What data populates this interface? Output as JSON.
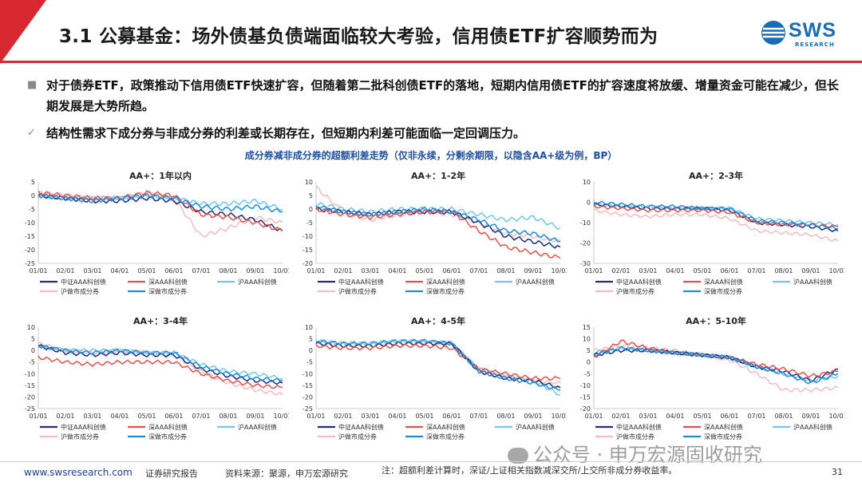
{
  "header": {
    "title": "3.1 公募基金：场外债基负债端面临较大考验，信用债ETF扩容顺势而为",
    "logo_text": "SWS",
    "logo_sub": "RESEARCH"
  },
  "bullets": [
    {
      "marker_icon": "square-bullet-icon",
      "text": "对于债券ETF，政策推动下信用债ETF快速扩容，但随着第二批科创债ETF的落地，短期内信用债ETF的扩容速度将放缓、增量资金可能在减少，但长期发展是大势所趋。"
    },
    {
      "marker_icon": "checkmark-icon",
      "text": "结构性需求下成分券与非成分券的利差或长期存在，但短期内利差可能面临一定回调压力。"
    }
  ],
  "figure_title": "成分券减非成分券的超额利差走势（仅非永续，分剩余期限，以隐含AA+级为例，BP）",
  "legend": [
    {
      "name": "中证AAA科创债",
      "color": "#1f2d7a",
      "width": 2.2
    },
    {
      "name": "深AAA科创债",
      "color": "#e5504a",
      "width": 2.2
    },
    {
      "name": "沪AAA科创债",
      "color": "#74c6ee",
      "width": 2.2
    },
    {
      "name": "沪做市成分券",
      "color": "#f5bcc0",
      "width": 2.2
    },
    {
      "name": "深做市成分券",
      "color": "#1b8ed9",
      "width": 2.2
    }
  ],
  "colors": {
    "brand_red": "#d7282f",
    "brand_blue": "#1c6bb5",
    "figure_title": "#1f4e9b"
  },
  "chart_data": [
    {
      "type": "line",
      "title": "AA+：1年以内",
      "ylim": [
        -25,
        5
      ],
      "yticks": [
        5,
        0,
        -5,
        -10,
        -15,
        -20,
        -25
      ],
      "categories": [
        "01/01",
        "02/01",
        "03/01",
        "04/01",
        "05/01",
        "06/01",
        "07/01",
        "08/01",
        "09/01",
        "10/01"
      ],
      "series": [
        {
          "name": "中证AAA科创债",
          "values": [
            0,
            -1,
            -2,
            -2,
            -1,
            -2,
            -6,
            -7,
            -9,
            -13
          ]
        },
        {
          "name": "深AAA科创债",
          "values": [
            1,
            0,
            -1,
            -1,
            1,
            0,
            -7,
            -8,
            -10,
            -13
          ]
        },
        {
          "name": "沪AAA科创债",
          "values": [
            0,
            -1,
            -1,
            -1,
            0,
            -1,
            -3,
            -3,
            -2,
            -5
          ]
        },
        {
          "name": "沪做市成分券",
          "values": [
            1,
            0,
            -1,
            -1,
            1,
            -1,
            -15,
            -12,
            -8,
            -10
          ]
        },
        {
          "name": "深做市成分券",
          "values": [
            0,
            -1,
            -2,
            -1,
            0,
            -1,
            -4,
            -5,
            -4,
            -6
          ]
        }
      ]
    },
    {
      "type": "line",
      "title": "AA+：1-2年",
      "ylim": [
        -20,
        10
      ],
      "yticks": [
        10,
        5,
        0,
        -5,
        -10,
        -15,
        -20
      ],
      "categories": [
        "01/01",
        "02/01",
        "03/01",
        "04/01",
        "05/01",
        "06/01",
        "07/01",
        "08/01",
        "09/01",
        "10/01"
      ],
      "series": [
        {
          "name": "中证AAA科创债",
          "values": [
            0,
            -1,
            -2,
            -1,
            -1,
            -1,
            -5,
            -10,
            -12,
            -14
          ]
        },
        {
          "name": "深AAA科创债",
          "values": [
            0,
            -2,
            -3,
            -2,
            -1,
            -1,
            -8,
            -14,
            -16,
            -18
          ]
        },
        {
          "name": "沪AAA科创债",
          "values": [
            2,
            0,
            -1,
            0,
            0,
            0,
            -2,
            -4,
            -3,
            -7
          ]
        },
        {
          "name": "沪做市成分券",
          "values": [
            8,
            -1,
            -4,
            -2,
            -1,
            -2,
            -5,
            -9,
            -10,
            -12
          ]
        },
        {
          "name": "深做市成分券",
          "values": [
            1,
            -1,
            -2,
            -1,
            0,
            -1,
            -4,
            -8,
            -9,
            -12
          ]
        }
      ]
    },
    {
      "type": "line",
      "title": "AA+：2-3年",
      "ylim": [
        -30,
        10
      ],
      "yticks": [
        10,
        0,
        -10,
        -20,
        -30
      ],
      "categories": [
        "01/01",
        "02/01",
        "03/01",
        "04/01",
        "05/01",
        "06/01",
        "07/01",
        "08/01",
        "09/01",
        "10/01"
      ],
      "series": [
        {
          "name": "中证AAA科创债",
          "values": [
            -1,
            -2,
            -3,
            -3,
            -3,
            -4,
            -10,
            -11,
            -12,
            -14
          ]
        },
        {
          "name": "深AAA科创债",
          "values": [
            -2,
            -3,
            -4,
            -4,
            -4,
            -5,
            -10,
            -11,
            -11,
            -12
          ]
        },
        {
          "name": "沪AAA科创债",
          "values": [
            -1,
            -2,
            -2,
            -3,
            -3,
            -3,
            -8,
            -9,
            -10,
            -11
          ]
        },
        {
          "name": "沪做市成分券",
          "values": [
            -4,
            -6,
            -7,
            -6,
            -6,
            -8,
            -14,
            -15,
            -16,
            -19
          ]
        },
        {
          "name": "深做市成分券",
          "values": [
            0,
            -1,
            -2,
            -2,
            -3,
            -3,
            -9,
            -10,
            -11,
            -13
          ]
        }
      ]
    },
    {
      "type": "line",
      "title": "AA+：3-4年",
      "ylim": [
        -25,
        10
      ],
      "yticks": [
        10,
        5,
        0,
        -5,
        -10,
        -15,
        -20,
        -25
      ],
      "categories": [
        "01/01",
        "02/01",
        "03/01",
        "04/01",
        "05/01",
        "06/01",
        "07/01",
        "08/01",
        "09/01",
        "10/01"
      ],
      "series": [
        {
          "name": "中证AAA科创债",
          "values": [
            2,
            -1,
            -2,
            -1,
            -2,
            -2,
            -8,
            -11,
            -13,
            -14
          ]
        },
        {
          "name": "深AAA科创债",
          "values": [
            -3,
            -5,
            -6,
            -5,
            -5,
            -5,
            -10,
            -13,
            -15,
            -16
          ]
        },
        {
          "name": "沪AAA科创债",
          "values": [
            2,
            0,
            0,
            0,
            -1,
            -1,
            -6,
            -9,
            -10,
            -12
          ]
        },
        {
          "name": "沪做市成分券",
          "values": [
            3,
            0,
            -1,
            0,
            -1,
            -2,
            -9,
            -14,
            -17,
            -19
          ]
        },
        {
          "name": "深做市成分券",
          "values": [
            2,
            0,
            -1,
            0,
            -1,
            -1,
            -7,
            -10,
            -12,
            -13
          ]
        }
      ]
    },
    {
      "type": "line",
      "title": "AA+：4-5年",
      "ylim": [
        -25,
        10
      ],
      "yticks": [
        10,
        5,
        0,
        -5,
        -10,
        -15,
        -20,
        -25
      ],
      "categories": [
        "01/01",
        "02/01",
        "03/01",
        "04/01",
        "05/01",
        "06/01",
        "07/01",
        "08/01",
        "09/01",
        "10/01"
      ],
      "series": [
        {
          "name": "中证AAA科创债",
          "values": [
            3,
            2,
            2,
            3,
            3,
            3,
            -9,
            -12,
            -13,
            -16
          ]
        },
        {
          "name": "深AAA科创债",
          "values": [
            2,
            1,
            1,
            2,
            2,
            1,
            -8,
            -10,
            -12,
            -12
          ]
        },
        {
          "name": "沪AAA科创债",
          "values": [
            4,
            3,
            3,
            4,
            4,
            3,
            -8,
            -11,
            -13,
            -19
          ]
        },
        {
          "name": "沪做市成分券",
          "values": [
            3,
            2,
            2,
            3,
            3,
            3,
            -8,
            -11,
            -13,
            -14
          ]
        },
        {
          "name": "深做市成分券",
          "values": [
            4,
            3,
            3,
            4,
            4,
            3,
            -9,
            -12,
            -14,
            -17
          ]
        }
      ]
    },
    {
      "type": "line",
      "title": "AA+：5-10年",
      "ylim": [
        -20,
        15
      ],
      "yticks": [
        15,
        10,
        5,
        0,
        -5,
        -10,
        -15,
        -20
      ],
      "categories": [
        "01/01",
        "02/01",
        "03/01",
        "04/01",
        "05/01",
        "06/01",
        "07/01",
        "08/01",
        "09/01",
        "10/01"
      ],
      "series": [
        {
          "name": "中证AAA科创债",
          "values": [
            3,
            5,
            5,
            4,
            3,
            2,
            -2,
            -4,
            -8,
            -3
          ]
        },
        {
          "name": "深AAA科创债",
          "values": [
            2,
            9,
            6,
            4,
            3,
            2,
            -1,
            -3,
            -6,
            -4
          ]
        },
        {
          "name": "沪AAA科创债",
          "values": [
            4,
            6,
            5,
            4,
            3,
            2,
            -2,
            -5,
            -8,
            -6
          ]
        },
        {
          "name": "沪做市成分券",
          "values": [
            5,
            7,
            6,
            5,
            3,
            1,
            -5,
            -12,
            -12,
            -11
          ]
        },
        {
          "name": "深做市成分券",
          "values": [
            3,
            6,
            5,
            4,
            3,
            2,
            -2,
            -5,
            -9,
            -5
          ]
        }
      ]
    }
  ],
  "footer": {
    "url": "www.swsresearch.com",
    "report_type": "证券研究报告",
    "source": "资料来源：聚源，申万宏源研究",
    "note_line1": "注：超额利差计算时，深证/上证相关指数减深交所/上交所非成分券收益率。",
    "page": "31"
  },
  "watermark": {
    "text": "公众号 · 申万宏源固收研究",
    "icon": "wechat-icon"
  }
}
